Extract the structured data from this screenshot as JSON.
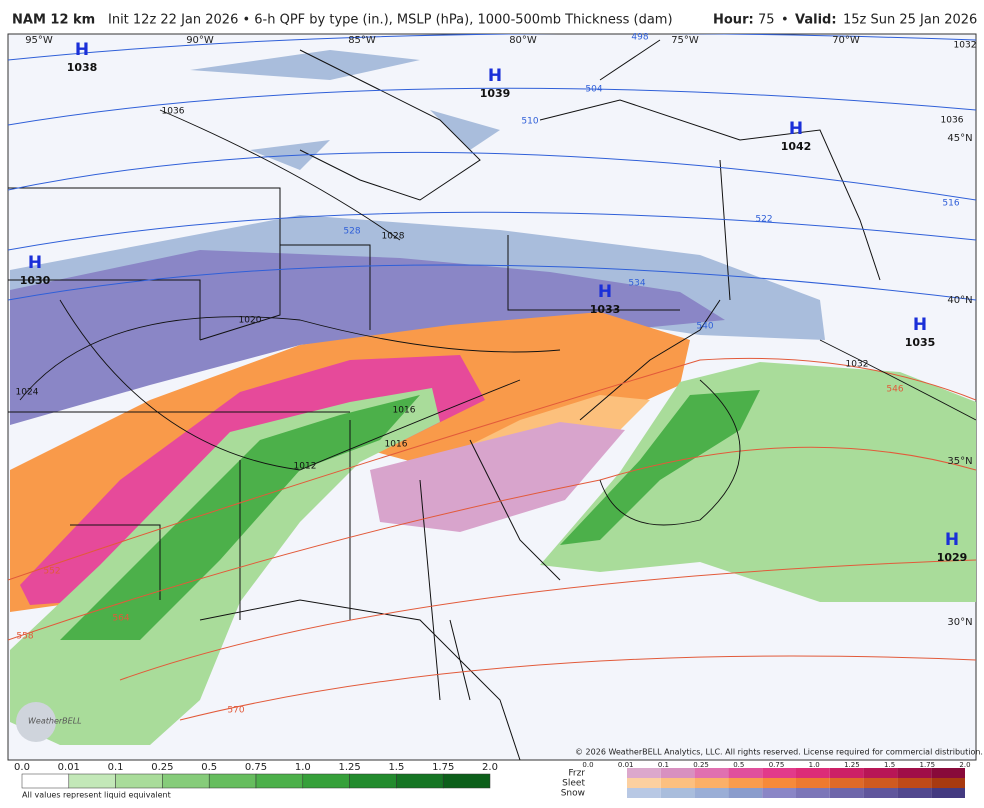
{
  "header": {
    "title": "NAM 12 km",
    "subtitle": "Init 12z 22 Jan 2026 • 6-h QPF by type (in.), MSLP (hPa), 1000-500mb Thickness (dam)",
    "hour_label": "Hour:",
    "hour": "75",
    "separator": "•",
    "valid_label": "Valid:",
    "valid": "15z Sun 25 Jan 2026"
  },
  "map": {
    "longitudes": [
      "95°W",
      "90°W",
      "85°W",
      "80°W",
      "75°W",
      "70°W"
    ],
    "latitudes": [
      "45°N",
      "40°N",
      "35°N",
      "30°N"
    ],
    "pressure_centers": [
      {
        "symbol": "H",
        "value": "1038"
      },
      {
        "symbol": "H",
        "value": "1039"
      },
      {
        "symbol": "H",
        "value": "1042"
      },
      {
        "symbol": "H",
        "value": "1030"
      },
      {
        "symbol": "H",
        "value": "1033"
      },
      {
        "symbol": "H",
        "value": "1035"
      },
      {
        "symbol": "H",
        "value": "1029"
      }
    ],
    "isobar_labels": [
      "1036",
      "1028",
      "1020",
      "1024",
      "1016",
      "1016",
      "1012",
      "1032",
      "1036",
      "1032"
    ],
    "thickness_labels": [
      "498",
      "504",
      "510",
      "516",
      "522",
      "528",
      "534",
      "540",
      "546",
      "552",
      "558",
      "564",
      "570"
    ],
    "copyright": "© 2026 WeatherBELL Analytics, LLC. All rights reserved. License required for commercial distribution.",
    "logo": "WeatherBELL"
  },
  "rain_legend": {
    "values": [
      "0.0",
      "0.01",
      "0.1",
      "0.25",
      "0.5",
      "0.75",
      "1.0",
      "1.25",
      "1.5",
      "1.75",
      "2.0"
    ],
    "note": "All values represent liquid equivalent"
  },
  "type_legend": {
    "types": [
      "Frzr",
      "Sleet",
      "Snow"
    ],
    "values": [
      "0.0",
      "0.01",
      "0.1",
      "0.25",
      "0.5",
      "0.75",
      "1.0",
      "1.25",
      "1.5",
      "1.75",
      "2.0"
    ]
  }
}
